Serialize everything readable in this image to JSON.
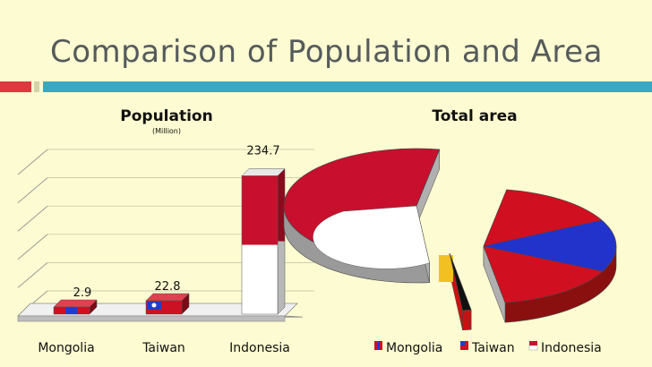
{
  "slide": {
    "title": "Comparison of Population and Area"
  },
  "colors": {
    "mongolia": "#2233cc",
    "taiwan": "#cc1122",
    "indonesia": "#c8102e",
    "accent_red": "#e0383f",
    "accent_blue": "#3aa7c3"
  },
  "chart_data": [
    {
      "type": "bar",
      "title": "Population",
      "subtitle": "(Million)",
      "categories": [
        "Mongolia",
        "Taiwan",
        "Indonesia"
      ],
      "values": [
        2.9,
        22.8,
        234.7
      ],
      "value_labels": [
        "2.9",
        "22.8",
        "234.7"
      ],
      "ylim": [
        0,
        240
      ],
      "grid": true
    },
    {
      "type": "pie",
      "title": "Total area",
      "labels": [
        "Mongolia",
        "Taiwan",
        "Indonesia"
      ],
      "values": [
        1564116,
        36193,
        1904569
      ],
      "legend": "bottom"
    }
  ]
}
